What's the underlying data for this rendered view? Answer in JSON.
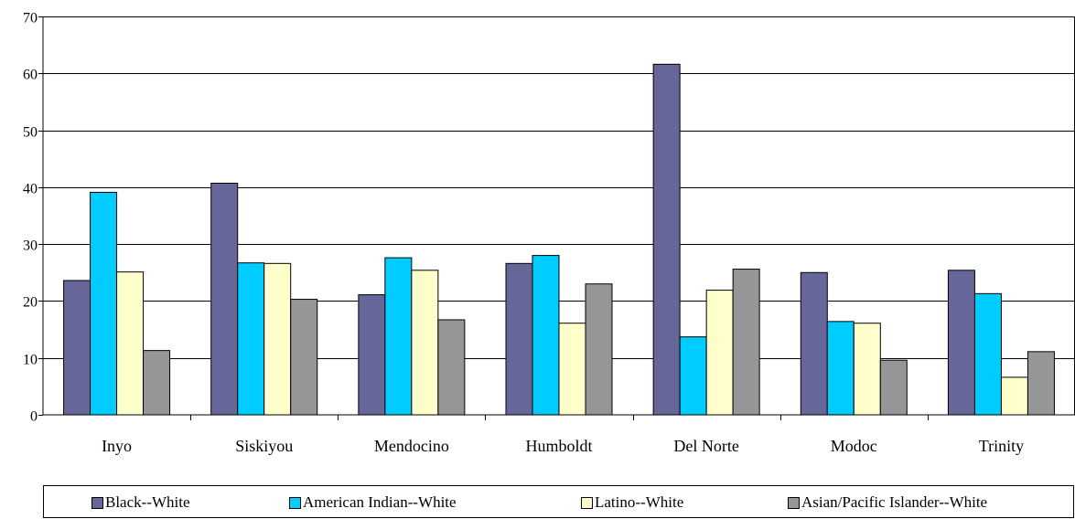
{
  "chart_data": {
    "type": "bar",
    "title": "",
    "xlabel": "",
    "ylabel": "",
    "ylim": [
      0,
      70
    ],
    "yticks": [
      0,
      10,
      20,
      30,
      40,
      50,
      60,
      70
    ],
    "grid": true,
    "legend_position": "bottom",
    "categories": [
      "Inyo",
      "Siskiyou",
      "Mendocino",
      "Humboldt",
      "Del Norte",
      "Modoc",
      "Trinity"
    ],
    "series": [
      {
        "name": "Black--White",
        "color": "#666699",
        "values": [
          23.6,
          40.7,
          21.1,
          26.6,
          61.6,
          25.0,
          25.4
        ]
      },
      {
        "name": "American Indian--White",
        "color": "#00CCFF",
        "values": [
          39.1,
          26.7,
          27.6,
          28.0,
          13.7,
          16.4,
          21.3
        ]
      },
      {
        "name": "Latino--White",
        "color": "#FFFFCC",
        "values": [
          25.1,
          26.6,
          25.4,
          16.1,
          21.9,
          16.1,
          6.6
        ]
      },
      {
        "name": "Asian/Pacific Islander--White",
        "color": "#969696",
        "values": [
          11.3,
          20.3,
          16.7,
          23.0,
          25.6,
          9.6,
          11.1
        ]
      }
    ]
  }
}
